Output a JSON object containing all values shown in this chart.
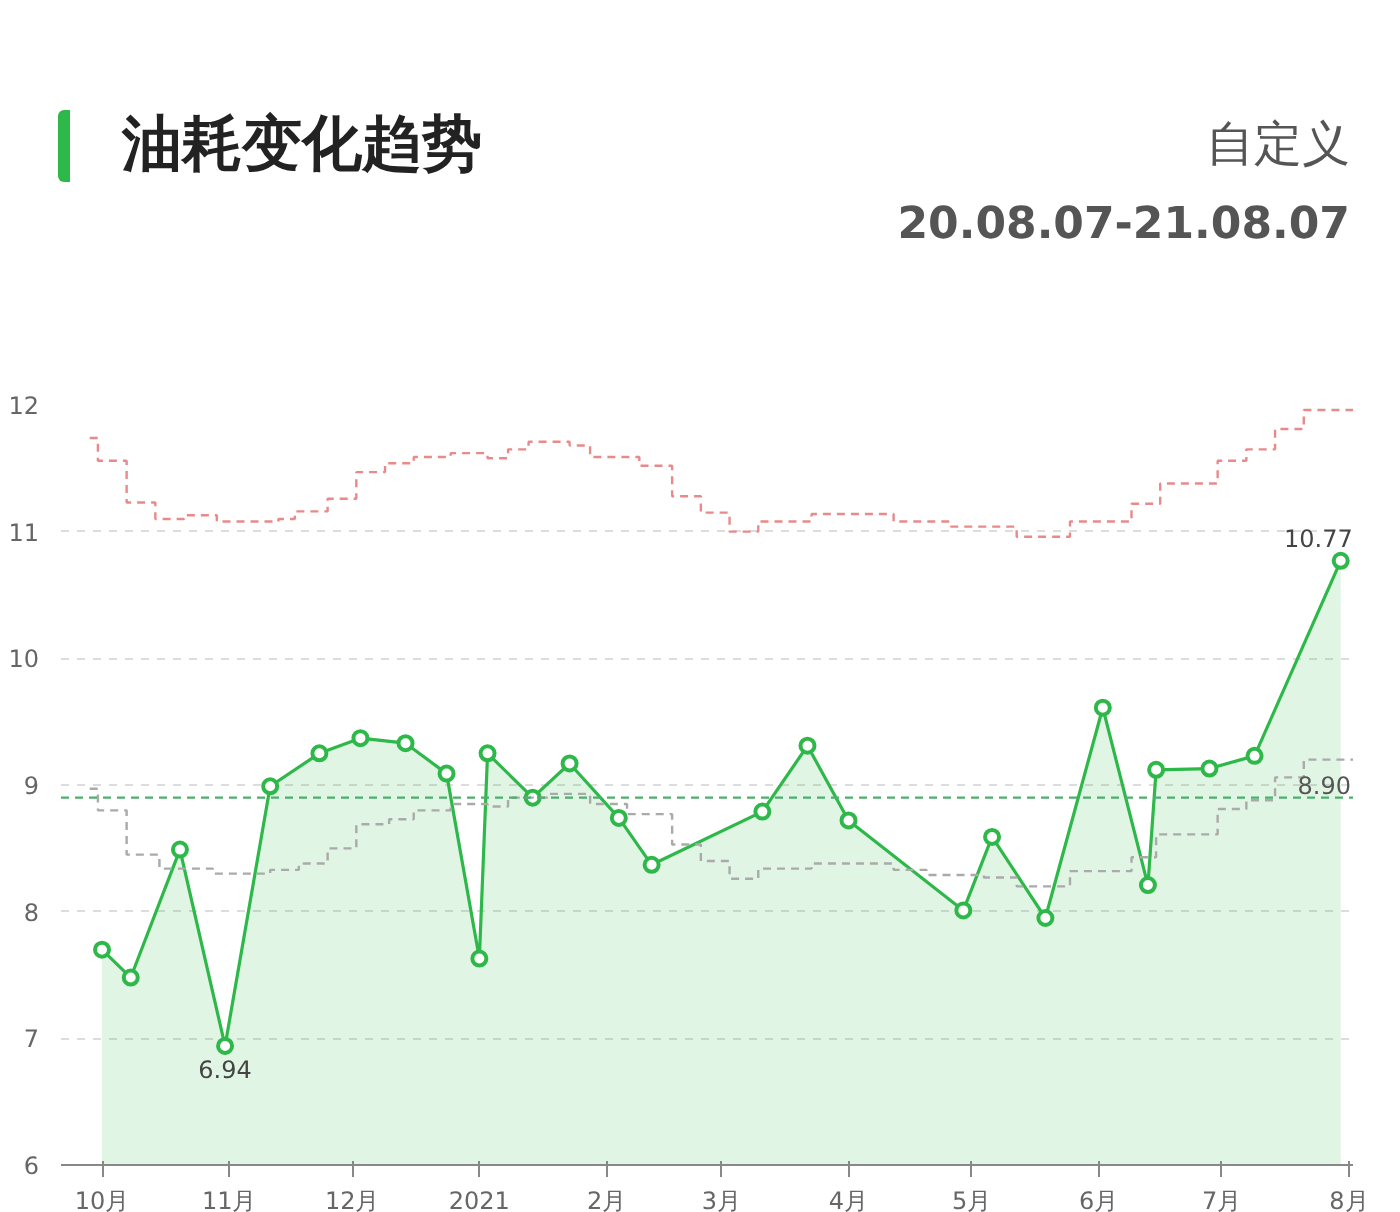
{
  "chart_data": {
    "type": "area",
    "title": "油耗变化趋势",
    "subtitle": "20.08.07-21.08.07",
    "annotations": [
      "自定义"
    ],
    "xlim": [
      "2020-09-21",
      "2021-08-02"
    ],
    "xticks": [
      {
        "value": "2020-10-01",
        "label": "10月"
      },
      {
        "value": "2020-11-01",
        "label": "11月"
      },
      {
        "value": "2020-12-01",
        "label": "12月"
      },
      {
        "value": "2021-01-01",
        "label": "2021"
      },
      {
        "value": "2021-02-01",
        "label": "2月"
      },
      {
        "value": "2021-03-01",
        "label": "3月"
      },
      {
        "value": "2021-04-01",
        "label": "4月"
      },
      {
        "value": "2021-05-01",
        "label": "5月"
      },
      {
        "value": "2021-06-01",
        "label": "6月"
      },
      {
        "value": "2021-07-01",
        "label": "7月"
      },
      {
        "value": "2021-08-01",
        "label": "8月"
      }
    ],
    "ylim": [
      6,
      12
    ],
    "yticks": [
      6,
      7,
      8,
      9,
      10,
      11,
      12
    ],
    "grid": "y",
    "marker": "circle",
    "ref_lines": [
      {
        "axis": "y",
        "value": 8.9,
        "label": "8.90",
        "color": "#4caf6e",
        "line_style": "dashed"
      }
    ],
    "series": [
      {
        "color": "#2eb84a",
        "x": [
          "2020-10-01",
          "2020-10-08",
          "2020-10-20",
          "2020-10-31",
          "2020-11-11",
          "2020-11-23",
          "2020-12-03",
          "2020-12-14",
          "2020-12-24",
          "2021-01-01",
          "2021-01-03",
          "2021-01-14",
          "2021-01-23",
          "2021-02-04",
          "2021-02-12",
          "2021-03-11",
          "2021-03-22",
          "2021-04-01",
          "2021-04-29",
          "2021-05-06",
          "2021-05-19",
          "2021-06-02",
          "2021-06-13",
          "2021-06-15",
          "2021-06-28",
          "2021-07-09",
          "2021-07-30"
        ],
        "values": [
          7.7,
          7.48,
          8.49,
          6.94,
          8.99,
          9.25,
          9.37,
          9.33,
          9.09,
          7.63,
          9.25,
          8.9,
          9.17,
          8.74,
          8.37,
          8.79,
          9.31,
          8.72,
          8.01,
          8.59,
          7.95,
          9.61,
          8.21,
          9.12,
          9.13,
          9.23,
          10.77
        ],
        "value_labels": [
          null,
          null,
          null,
          "6.94",
          null,
          null,
          null,
          null,
          null,
          null,
          null,
          null,
          null,
          null,
          null,
          null,
          null,
          null,
          null,
          null,
          null,
          null,
          null,
          null,
          null,
          null,
          "10.77"
        ]
      },
      {
        "type": "step",
        "color": "#aaaaaa",
        "line_style": "dashed",
        "marker": "none",
        "x": [
          "2020-09-28",
          "2020-09-30",
          "2020-10-07",
          "2020-10-15",
          "2020-10-28",
          "2020-11-11",
          "2020-11-18",
          "2020-11-25",
          "2020-12-02",
          "2020-12-10",
          "2020-12-16",
          "2020-12-25",
          "2021-01-03",
          "2021-01-08",
          "2021-01-18",
          "2021-01-28",
          "2021-02-06",
          "2021-02-17",
          "2021-02-24",
          "2021-03-03",
          "2021-03-10",
          "2021-03-23",
          "2021-04-12",
          "2021-04-20",
          "2021-05-04",
          "2021-05-12",
          "2021-05-25",
          "2021-06-09",
          "2021-06-15",
          "2021-06-30",
          "2021-07-07",
          "2021-07-14",
          "2021-07-21",
          "2021-08-02"
        ],
        "values": [
          8.97,
          8.8,
          8.45,
          8.34,
          8.3,
          8.33,
          8.38,
          8.5,
          8.69,
          8.73,
          8.8,
          8.85,
          8.83,
          8.9,
          8.93,
          8.85,
          8.77,
          8.53,
          8.4,
          8.26,
          8.34,
          8.38,
          8.33,
          8.29,
          8.27,
          8.2,
          8.32,
          8.43,
          8.61,
          8.81,
          8.88,
          9.06,
          9.2,
          9.2
        ]
      },
      {
        "type": "step",
        "color": "#e88a8a",
        "line_style": "dashed",
        "marker": "none",
        "x": [
          "2020-09-28",
          "2020-09-30",
          "2020-10-07",
          "2020-10-14",
          "2020-10-21",
          "2020-10-29",
          "2020-11-13",
          "2020-11-17",
          "2020-11-25",
          "2020-12-02",
          "2020-12-09",
          "2020-12-16",
          "2020-12-25",
          "2021-01-03",
          "2021-01-08",
          "2021-01-13",
          "2021-01-23",
          "2021-01-28",
          "2021-02-09",
          "2021-02-17",
          "2021-02-24",
          "2021-03-03",
          "2021-03-10",
          "2021-03-23",
          "2021-04-12",
          "2021-04-26",
          "2021-05-12",
          "2021-05-25",
          "2021-06-09",
          "2021-06-16",
          "2021-06-30",
          "2021-07-07",
          "2021-07-14",
          "2021-07-21",
          "2021-08-02"
        ],
        "values": [
          11.74,
          11.56,
          11.23,
          11.1,
          11.13,
          11.08,
          11.1,
          11.16,
          11.26,
          11.47,
          11.54,
          11.59,
          11.62,
          11.58,
          11.65,
          11.71,
          11.68,
          11.59,
          11.52,
          11.28,
          11.15,
          11.0,
          11.08,
          11.14,
          11.08,
          11.04,
          10.96,
          11.08,
          11.22,
          11.38,
          11.56,
          11.65,
          11.81,
          11.96,
          11.96
        ]
      }
    ]
  }
}
